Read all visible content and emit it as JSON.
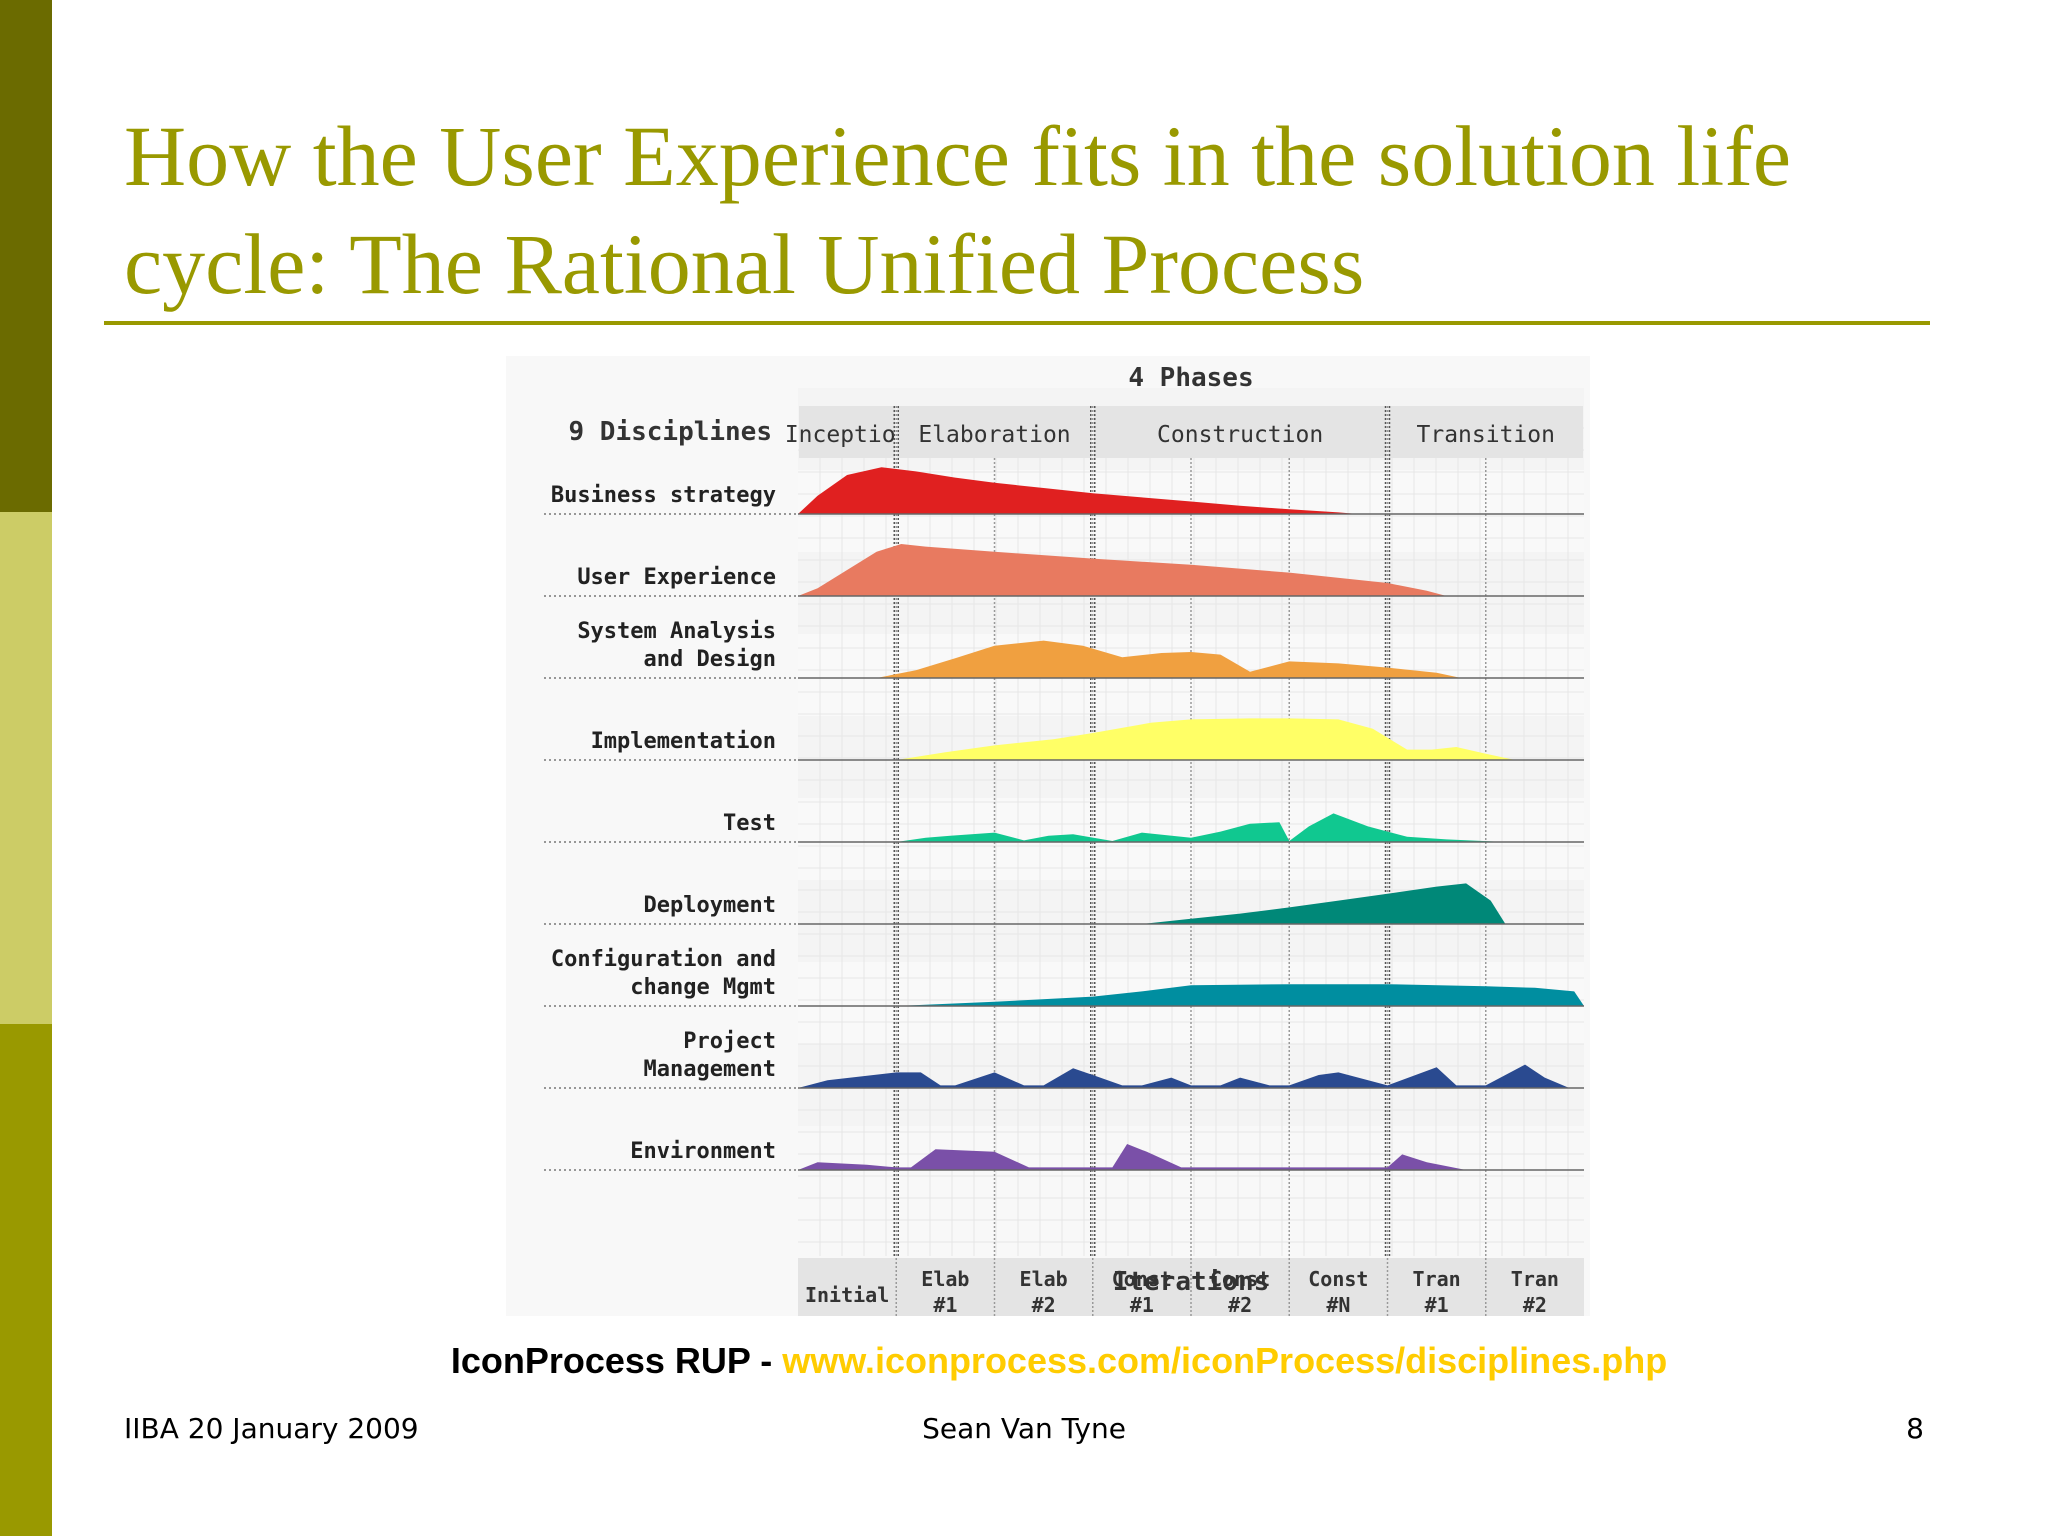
{
  "slide": {
    "title": "How the User Experience fits in the solution life cycle: The Rational Unified Process",
    "caption_prefix": "IconProcess RUP - ",
    "caption_link": "www.iconprocess.com/iconProcess/disciplines.php",
    "footer_left": "IIBA 20 January 2009",
    "footer_center": "Sean Van Tyne",
    "footer_right": "8"
  },
  "colors": {
    "accent": "#999900",
    "band_dark": "#6b6b00",
    "band_light": "#cccc66",
    "link": "#ffcc00"
  },
  "chart_data": {
    "type": "area",
    "title": "4 Phases",
    "row_header": "9 Disciplines",
    "xlabel": "Iterations",
    "phases": [
      {
        "label": "Inception",
        "iterations": 1
      },
      {
        "label": "Elaboration",
        "iterations": 2
      },
      {
        "label": "Construction",
        "iterations": 3
      },
      {
        "label": "Transition",
        "iterations": 2
      }
    ],
    "iterations": [
      "Initial",
      "Elab #1",
      "Elab #2",
      "Const #1",
      "Const #2",
      "Const #N",
      "Tran #1",
      "Tran #2"
    ],
    "x_range": [
      0,
      8
    ],
    "series": [
      {
        "name": "Business strategy",
        "color": "#e02020",
        "x": [
          0,
          0.2,
          0.5,
          0.85,
          1.2,
          1.6,
          2,
          2.5,
          3,
          3.5,
          4,
          4.5,
          5,
          5.5,
          5.7
        ],
        "y": [
          0,
          0.35,
          0.75,
          0.9,
          0.82,
          0.7,
          0.6,
          0.5,
          0.4,
          0.32,
          0.24,
          0.16,
          0.09,
          0.03,
          0
        ]
      },
      {
        "name": "User Experience",
        "color": "#e87a60",
        "x": [
          0,
          0.2,
          0.5,
          0.8,
          1.05,
          1.3,
          2,
          3,
          4,
          5,
          6,
          6.4,
          6.6
        ],
        "y": [
          0,
          0.15,
          0.5,
          0.85,
          1.0,
          0.95,
          0.85,
          0.72,
          0.6,
          0.45,
          0.25,
          0.1,
          0
        ]
      },
      {
        "name": "System Analysis\nand Design",
        "color": "#f0a040",
        "x": [
          0.8,
          1.2,
          1.6,
          2.0,
          2.5,
          2.9,
          3.3,
          3.7,
          4.0,
          4.3,
          4.6,
          5.0,
          5.5,
          6.0,
          6.5,
          6.75
        ],
        "y": [
          0,
          0.15,
          0.38,
          0.62,
          0.72,
          0.62,
          0.4,
          0.48,
          0.5,
          0.45,
          0.12,
          0.32,
          0.28,
          0.2,
          0.1,
          0
        ]
      },
      {
        "name": "Implementation",
        "color": "#ffff66",
        "x": [
          1.0,
          1.5,
          2.0,
          2.6,
          3.0,
          3.6,
          4.0,
          4.6,
          5.0,
          5.5,
          5.85,
          6.2,
          6.45,
          6.7,
          7.0,
          7.3
        ],
        "y": [
          0,
          0.15,
          0.28,
          0.4,
          0.52,
          0.72,
          0.78,
          0.8,
          0.8,
          0.78,
          0.6,
          0.2,
          0.2,
          0.25,
          0.12,
          0
        ]
      },
      {
        "name": "Test",
        "color": "#10c890",
        "x": [
          1.0,
          1.3,
          1.55,
          2.0,
          2.3,
          2.55,
          2.8,
          3.2,
          3.5,
          4.0,
          4.3,
          4.6,
          4.9,
          5.0,
          5.2,
          5.45,
          5.8,
          6.2,
          6.6,
          7.2
        ],
        "y": [
          0,
          0.08,
          0.12,
          0.18,
          0.03,
          0.12,
          0.15,
          0.02,
          0.18,
          0.08,
          0.2,
          0.35,
          0.38,
          0.02,
          0.3,
          0.55,
          0.3,
          0.1,
          0.05,
          0
        ]
      },
      {
        "name": "Deployment",
        "color": "#008878",
        "x": [
          3.5,
          4.0,
          4.5,
          5.0,
          5.5,
          6.0,
          6.5,
          6.8,
          7.05,
          7.2
        ],
        "y": [
          0,
          0.1,
          0.2,
          0.32,
          0.45,
          0.58,
          0.72,
          0.78,
          0.45,
          0
        ]
      },
      {
        "name": "Configuration and\nchange Mgmt",
        "color": "#008ea0",
        "x": [
          1.0,
          2.0,
          3.0,
          3.5,
          4.0,
          5.0,
          6.0,
          7.0,
          7.5,
          7.9,
          8.0
        ],
        "y": [
          0,
          0.08,
          0.18,
          0.28,
          0.4,
          0.42,
          0.42,
          0.38,
          0.35,
          0.28,
          0
        ]
      },
      {
        "name": "Project\nManagement",
        "color": "#2a4a90",
        "x": [
          0,
          0.3,
          1.0,
          1.25,
          1.45,
          1.6,
          2.0,
          2.3,
          2.5,
          2.8,
          3.0,
          3.3,
          3.5,
          3.8,
          4.0,
          4.3,
          4.5,
          4.8,
          5.0,
          5.3,
          5.5,
          6.0,
          6.5,
          6.7,
          7.0,
          7.4,
          7.6,
          7.85
        ],
        "y": [
          0,
          0.15,
          0.3,
          0.3,
          0.05,
          0.05,
          0.3,
          0.05,
          0.05,
          0.38,
          0.25,
          0.05,
          0.05,
          0.2,
          0.05,
          0.05,
          0.2,
          0.05,
          0.05,
          0.25,
          0.3,
          0.05,
          0.4,
          0.05,
          0.05,
          0.45,
          0.2,
          0
        ]
      },
      {
        "name": "Environment",
        "color": "#7a50a8",
        "x": [
          0,
          0.2,
          0.7,
          1.0,
          1.15,
          1.4,
          2.0,
          2.35,
          3.0,
          3.2,
          3.35,
          3.55,
          3.9,
          4.4,
          5.0,
          6.0,
          6.15,
          6.4,
          6.8
        ],
        "y": [
          0,
          0.15,
          0.1,
          0.05,
          0.05,
          0.4,
          0.35,
          0.05,
          0.05,
          0.05,
          0.5,
          0.35,
          0.05,
          0.05,
          0.05,
          0.05,
          0.3,
          0.15,
          0
        ]
      }
    ]
  }
}
